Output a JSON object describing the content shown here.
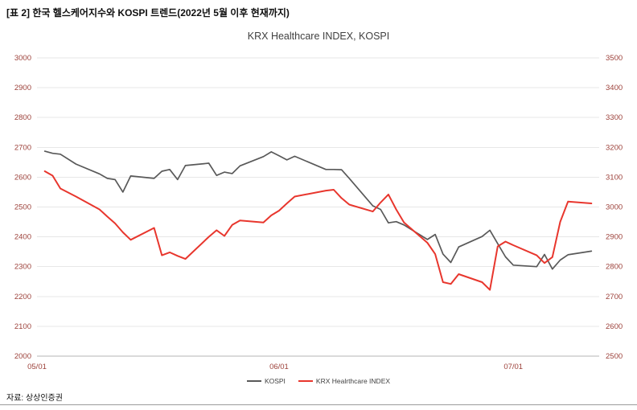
{
  "page": {
    "title": "[표 2] 한국 헬스케어지수와 KOSPI 트렌드(2022년 5월 이후 현재까지)",
    "source": "자료: 상상인증권"
  },
  "colors": {
    "grid": "#e7e7e7",
    "axis_line": "#b5b5b5",
    "tick_text": "#9d423b",
    "chart_title_text": "#404040",
    "legend_text": "#404040",
    "kospi_line": "#595959",
    "krx_line": "#e8362d"
  },
  "chart_data": {
    "type": "line",
    "title": "KRX Healthcare INDEX, KOSPI",
    "grid": "horizontal",
    "legend_position": "bottom-center",
    "x_unit": "calendar-day offset from 2022-05-01 (trading days 2022-05-02 to 2022-07-11)",
    "x_domain": [
      0,
      72
    ],
    "x_ticks": [
      {
        "label": "05/01",
        "x": 0
      },
      {
        "label": "06/01",
        "x": 31
      },
      {
        "label": "07/01",
        "x": 61
      }
    ],
    "left_axis": {
      "min": 2000,
      "max": 3000,
      "step": 100
    },
    "right_axis": {
      "min": 2500,
      "max": 3500,
      "step": 100
    },
    "x": [
      1,
      2,
      3,
      5,
      8,
      9,
      10,
      11,
      12,
      15,
      16,
      17,
      18,
      19,
      22,
      23,
      24,
      25,
      26,
      29,
      30,
      31,
      32,
      33,
      37,
      38,
      39,
      40,
      43,
      44,
      45,
      46,
      47,
      50,
      51,
      52,
      53,
      54,
      57,
      58,
      59,
      60,
      61,
      64,
      65,
      66,
      67,
      68,
      71
    ],
    "series": [
      {
        "name": "KOSPI",
        "axis": "left",
        "color": "#595959",
        "values": [
          2687,
          2680,
          2677,
          2644,
          2611,
          2596,
          2592,
          2550,
          2604,
          2596,
          2620,
          2626,
          2592,
          2639,
          2647,
          2606,
          2617,
          2612,
          2638,
          2669,
          2685,
          2672,
          2658,
          2670,
          2626,
          2626,
          2625,
          2596,
          2504,
          2492,
          2447,
          2451,
          2440,
          2391,
          2408,
          2342,
          2314,
          2366,
          2401,
          2422,
          2377,
          2333,
          2305,
          2300,
          2341,
          2292,
          2322,
          2340,
          2352
        ]
      },
      {
        "name": "KRX Healrthcare INDEX",
        "axis": "right",
        "color": "#e8362d",
        "values": [
          3120,
          3105,
          3062,
          3035,
          2992,
          2968,
          2945,
          2915,
          2890,
          2930,
          2838,
          2848,
          2836,
          2826,
          2900,
          2922,
          2903,
          2940,
          2955,
          2948,
          2972,
          2988,
          3012,
          3035,
          3055,
          3058,
          3030,
          3008,
          2985,
          3015,
          3042,
          2992,
          2948,
          2880,
          2842,
          2748,
          2742,
          2775,
          2748,
          2722,
          2868,
          2884,
          2872,
          2838,
          2812,
          2832,
          2950,
          3018,
          3012
        ]
      }
    ]
  }
}
